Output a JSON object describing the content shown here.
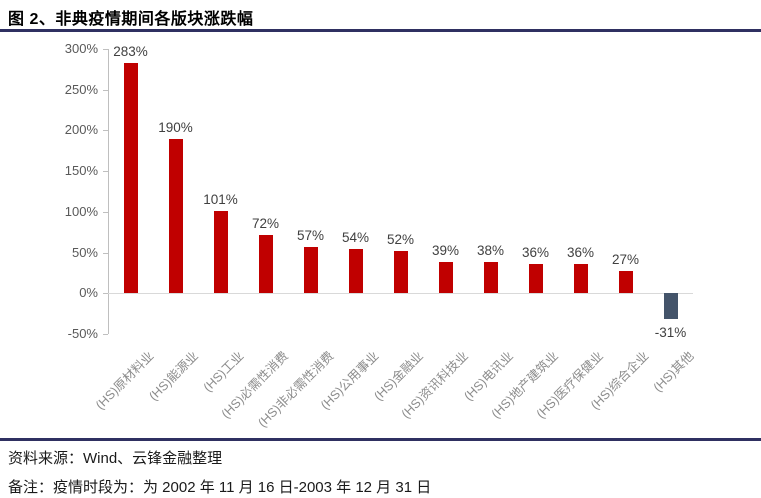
{
  "header": {
    "title": "图 2、非典疫情期间各版块涨跌幅"
  },
  "chart_data": {
    "type": "bar",
    "title": "图 2、非典疫情期间各版块涨跌幅",
    "categories": [
      "(HS)原材料业",
      "(HS)能源业",
      "(HS)工业",
      "(HS)必需性消费",
      "(HS)非必需性消费",
      "(HS)公用事业",
      "(HS)金融业",
      "(HS)资讯科技业",
      "(HS)电讯业",
      "(HS)地产建筑业",
      "(HS)医疗保健业",
      "(HS)综合企业",
      "(HS)其他"
    ],
    "values": [
      283,
      190,
      101,
      72,
      57,
      54,
      52,
      39,
      38,
      36,
      36,
      27,
      -31
    ],
    "value_labels": [
      "283%",
      "190%",
      "101%",
      "72%",
      "57%",
      "54%",
      "52%",
      "39%",
      "38%",
      "36%",
      "36%",
      "27%",
      "-31%"
    ],
    "ylabel": "",
    "xlabel": "",
    "ylim": [
      -50,
      300
    ],
    "yticks": [
      300,
      250,
      200,
      150,
      100,
      50,
      0,
      -50
    ],
    "ytick_labels": [
      "300%",
      "250%",
      "200%",
      "150%",
      "100%",
      "50%",
      "0%",
      "-50%"
    ],
    "grid": "zero-baseline-only",
    "legend": "none",
    "bar_color_positive": "#c00000",
    "bar_color_negative": "#44546a"
  },
  "footer": {
    "source": "资料来源：Wind、云锋金融整理",
    "note": "备注：疫情时段为：为 2002 年 11 月 16 日-2003 年 12 月 31 日"
  },
  "colors": {
    "accent_line": "#2f3061",
    "positive_bar": "#c00000",
    "negative_bar": "#44546a",
    "axis": "#bfbfbf",
    "gridline": "#d9d9d9",
    "tick_text": "#595959",
    "value_text": "#404040",
    "category_text": "#8c8c8c"
  }
}
